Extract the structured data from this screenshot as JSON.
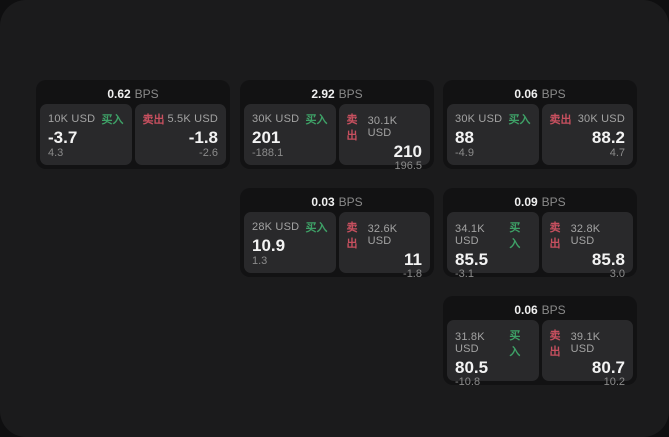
{
  "colors": {
    "page_background": "#0f0f10",
    "panel_background": "#1b1b1c",
    "card_background": "#121213",
    "pane_background": "#29292b",
    "buy_green": "#3ea167",
    "sell_red": "#c7505f",
    "value_white": "#f3f3f3",
    "muted_gray": "#8b8b8b"
  },
  "bps_unit_label": "BPS",
  "buy_side_label": "买入",
  "sell_side_label": "卖出",
  "cards": [
    {
      "bps": "0.62",
      "buy": {
        "size": "10K USD",
        "price": "-3.7",
        "delta": "4.3"
      },
      "sell": {
        "size": "5.5K USD",
        "price": "-1.8",
        "delta": "-2.6"
      }
    },
    {
      "bps": "2.92",
      "buy": {
        "size": "30K USD",
        "price": "201",
        "delta": "-188.1"
      },
      "sell": {
        "size": "30.1K USD",
        "price": "210",
        "delta": "196.5"
      }
    },
    {
      "bps": "0.06",
      "buy": {
        "size": "30K USD",
        "price": "88",
        "delta": "-4.9"
      },
      "sell": {
        "size": "30K USD",
        "price": "88.2",
        "delta": "4.7"
      }
    },
    {
      "bps": "0.03",
      "buy": {
        "size": "28K USD",
        "price": "10.9",
        "delta": "1.3"
      },
      "sell": {
        "size": "32.6K USD",
        "price": "11",
        "delta": "-1.8"
      }
    },
    {
      "bps": "0.09",
      "buy": {
        "size": "34.1K USD",
        "price": "85.5",
        "delta": "-3.1"
      },
      "sell": {
        "size": "32.8K USD",
        "price": "85.8",
        "delta": "3.0"
      }
    },
    {
      "bps": "0.06",
      "buy": {
        "size": "31.8K USD",
        "price": "80.5",
        "delta": "-10.8"
      },
      "sell": {
        "size": "39.1K USD",
        "price": "80.7",
        "delta": "10.2"
      }
    }
  ]
}
